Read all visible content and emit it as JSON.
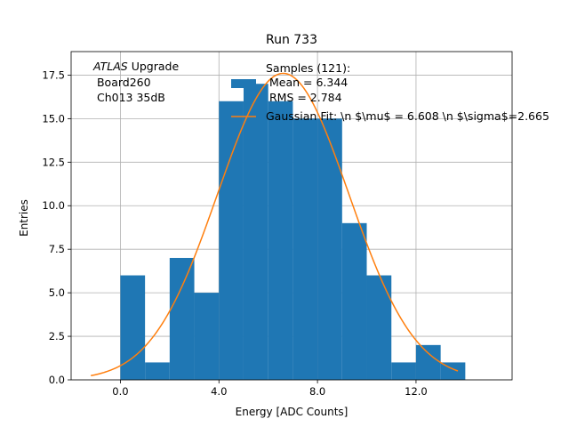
{
  "chart_data": {
    "type": "bar",
    "title": "Run 733",
    "xlabel": "Energy [ADC Counts]",
    "ylabel": "Entries",
    "xlim": [
      -2.0,
      15.9
    ],
    "ylim": [
      0,
      18.85
    ],
    "grid": true,
    "xticks": [
      0.0,
      4.0,
      8.0,
      12.0
    ],
    "xtick_labels": [
      "0.0",
      "4.0",
      "8.0",
      "12.0"
    ],
    "yticks": [
      0.0,
      2.5,
      5.0,
      7.5,
      10.0,
      12.5,
      15.0,
      17.5
    ],
    "ytick_labels": [
      "0.0",
      "2.5",
      "5.0",
      "7.5",
      "10.0",
      "12.5",
      "15.0",
      "17.5"
    ],
    "bins": [
      {
        "x0": 0.0,
        "x1": 1.0,
        "value": 6
      },
      {
        "x0": 1.0,
        "x1": 2.0,
        "value": 1
      },
      {
        "x0": 2.0,
        "x1": 3.0,
        "value": 7
      },
      {
        "x0": 3.0,
        "x1": 4.0,
        "value": 5
      },
      {
        "x0": 4.0,
        "x1": 5.0,
        "value": 16
      },
      {
        "x0": 5.0,
        "x1": 6.0,
        "value": 17
      },
      {
        "x0": 6.0,
        "x1": 7.0,
        "value": 16
      },
      {
        "x0": 7.0,
        "x1": 8.0,
        "value": 15
      },
      {
        "x0": 8.0,
        "x1": 9.0,
        "value": 15
      },
      {
        "x0": 9.0,
        "x1": 10.0,
        "value": 9
      },
      {
        "x0": 10.0,
        "x1": 11.0,
        "value": 6
      },
      {
        "x0": 11.0,
        "x1": 12.0,
        "value": 1
      },
      {
        "x0": 12.0,
        "x1": 13.0,
        "value": 2
      },
      {
        "x0": 13.0,
        "x1": 14.0,
        "value": 1
      }
    ],
    "fit": {
      "amplitude": 17.6,
      "mu": 6.608,
      "sigma": 2.665,
      "x_start": -1.2,
      "x_end": 13.7,
      "color": "#ff7f0e"
    },
    "hist_color": "#1f77b4",
    "annotation": {
      "line1_italic": "ATLAS",
      "line1_rest": " Upgrade",
      "line2": " Board260",
      "line3": " Ch013 35dB"
    },
    "legend": {
      "placement": "top-right",
      "hist_label_lines": [
        "Samples (121):",
        " Mean = 6.344",
        " RMS = 2.784"
      ],
      "fit_label": "Gaussian Fit: \\n $\\mu$ = 6.608 \\n $\\sigma$=2.665"
    }
  }
}
